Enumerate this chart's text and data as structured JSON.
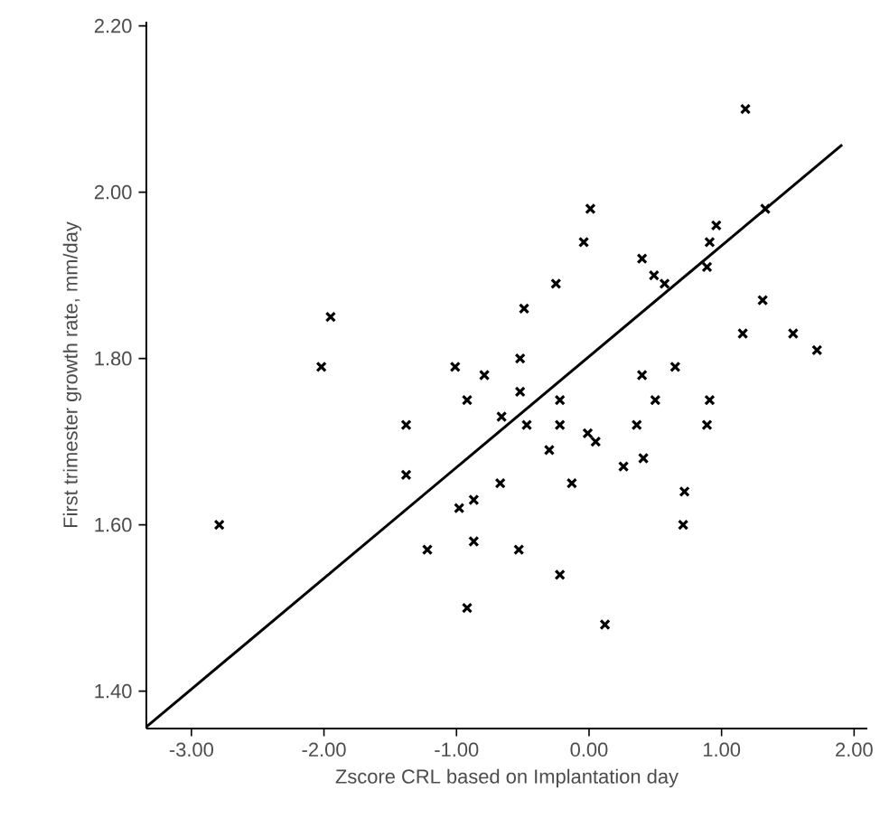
{
  "chart_data": {
    "type": "scatter",
    "xlabel": "Zscore CRL based on Implantation day",
    "ylabel": "First trimester growth rate, mm/day",
    "xlim": [
      -3.34,
      2.1
    ],
    "ylim": [
      1.355,
      2.205
    ],
    "xticks": [
      {
        "value": -3,
        "label": "-3.00"
      },
      {
        "value": -2,
        "label": "-2.00"
      },
      {
        "value": -1,
        "label": "-1.00"
      },
      {
        "value": 0,
        "label": "0.00"
      },
      {
        "value": 1,
        "label": "1.00"
      },
      {
        "value": 2,
        "label": "2.00"
      }
    ],
    "yticks": [
      {
        "value": 1.4,
        "label": "1.40"
      },
      {
        "value": 1.6,
        "label": "1.60"
      },
      {
        "value": 1.8,
        "label": "1.80"
      },
      {
        "value": 2.0,
        "label": "2.00"
      },
      {
        "value": 2.2,
        "label": "2.20"
      }
    ],
    "grid": false,
    "marker": "cross",
    "series": [
      {
        "color": "#000000",
        "x": [
          -2.79,
          -1.95,
          -2.02,
          -1.38,
          -1.38,
          -1.22,
          -1.01,
          -0.92,
          -0.79,
          -0.66,
          -0.52,
          -0.52,
          -0.49,
          -0.25,
          -0.04,
          0.01,
          -0.47,
          -0.22,
          -0.22,
          -0.01,
          0.05,
          0.4,
          0.49,
          0.57,
          0.4,
          0.65,
          0.5,
          0.36,
          0.91,
          0.96,
          0.89,
          0.91,
          0.89,
          1.18,
          1.33,
          1.31,
          1.16,
          1.54,
          1.72,
          -0.3,
          0.26,
          0.41,
          -0.13,
          -0.67,
          -0.87,
          -0.98,
          0.72,
          0.71,
          -0.87,
          -0.53,
          -0.22,
          -0.92,
          0.12
        ],
        "values": [
          1.6,
          1.85,
          1.79,
          1.72,
          1.66,
          1.57,
          1.79,
          1.75,
          1.78,
          1.73,
          1.8,
          1.76,
          1.86,
          1.89,
          1.94,
          1.98,
          1.72,
          1.72,
          1.75,
          1.71,
          1.7,
          1.92,
          1.9,
          1.89,
          1.78,
          1.79,
          1.75,
          1.72,
          1.94,
          1.96,
          1.91,
          1.75,
          1.72,
          2.1,
          1.98,
          1.87,
          1.83,
          1.83,
          1.81,
          1.69,
          1.67,
          1.68,
          1.65,
          1.65,
          1.63,
          1.62,
          1.64,
          1.6,
          1.58,
          1.57,
          1.54,
          1.5,
          1.48
        ]
      },
      {
        "type": "line",
        "color": "#000000",
        "marker": "none",
        "line_style": "solid",
        "x": [
          -3.34,
          1.91
        ],
        "values": [
          1.357,
          2.057
        ]
      }
    ]
  }
}
